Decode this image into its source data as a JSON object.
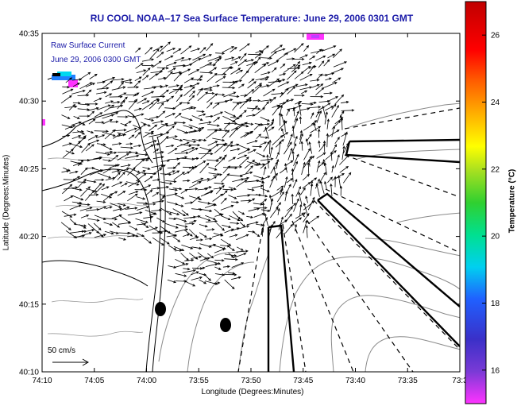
{
  "title": "RU COOL  NOAA–17  Sea Surface Temperature:  June 29, 2006 0301 GMT",
  "legend": {
    "line1": "Raw Surface Current",
    "line2": "June 29, 2006 0300 GMT"
  },
  "scale_label": "50 cm/s",
  "axes": {
    "xlabel": "Longitude (Degrees:Minutes)",
    "ylabel": "Latitude (Degrees:Minutes)",
    "x_ticks": [
      "74:10",
      "74:05",
      "74:00",
      "73:55",
      "73:50",
      "73:45",
      "73:40",
      "73:35",
      "73:3"
    ],
    "y_ticks": [
      "40:35",
      "40:30",
      "40:25",
      "40:20",
      "40:15",
      "40:10"
    ]
  },
  "colorbar": {
    "label": "Temperature (°C)",
    "ticks": [
      "26",
      "24",
      "22",
      "20",
      "18",
      "16"
    ],
    "range": [
      15,
      27
    ]
  }
}
